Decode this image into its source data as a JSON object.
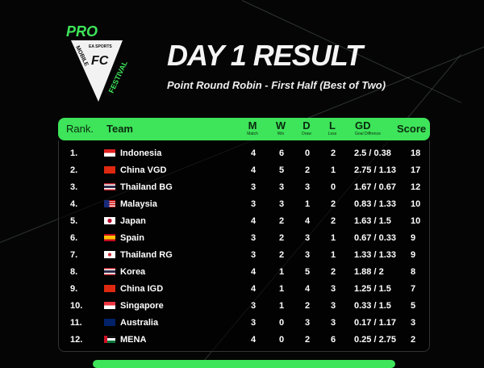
{
  "logo": {
    "top": "PRO",
    "brand": "EA SPORTS",
    "fc": "FC",
    "mobile": "MOBILE",
    "festival": "FESTIVAL"
  },
  "title": "DAY 1 RESULT",
  "subtitle": "Point Round Robin - First Half (Best of Two)",
  "colors": {
    "accent": "#3ee45a",
    "background": "#050505"
  },
  "header": {
    "rank": "Rank.",
    "team": "Team",
    "m": "M",
    "m_sub": "Match",
    "w": "W",
    "w_sub": "Win",
    "d": "D",
    "d_sub": "Draw",
    "l": "L",
    "l_sub": "Loss",
    "gd": "GD",
    "gd_sub": "Goal Diffrence",
    "score": "Score"
  },
  "rows": [
    {
      "rank": "1.",
      "team": "Indonesia",
      "flag": "indonesia",
      "m": "4",
      "w": "6",
      "d": "0",
      "l": "2",
      "gd": "2.5 / 0.38",
      "score": "18"
    },
    {
      "rank": "2.",
      "team": "China VGD",
      "flag": "china",
      "m": "4",
      "w": "5",
      "d": "2",
      "l": "1",
      "gd": "2.75 / 1.13",
      "score": "17"
    },
    {
      "rank": "3.",
      "team": "Thailand BG",
      "flag": "thailand",
      "m": "3",
      "w": "3",
      "d": "3",
      "l": "0",
      "gd": "1.67 / 0.67",
      "score": "12"
    },
    {
      "rank": "4.",
      "team": "Malaysia",
      "flag": "malaysia",
      "m": "3",
      "w": "3",
      "d": "1",
      "l": "2",
      "gd": "0.83 / 1.33",
      "score": "10"
    },
    {
      "rank": "5.",
      "team": "Japan",
      "flag": "japan",
      "m": "4",
      "w": "2",
      "d": "4",
      "l": "2",
      "gd": "1.63 / 1.5",
      "score": "10"
    },
    {
      "rank": "6.",
      "team": "Spain",
      "flag": "spain",
      "m": "3",
      "w": "2",
      "d": "3",
      "l": "1",
      "gd": "0.67 / 0.33",
      "score": "9"
    },
    {
      "rank": "7.",
      "team": "Thailand RG",
      "flag": "korea",
      "m": "3",
      "w": "2",
      "d": "3",
      "l": "1",
      "gd": "1.33 / 1.33",
      "score": "9"
    },
    {
      "rank": "8.",
      "team": "Korea",
      "flag": "thailand",
      "m": "4",
      "w": "1",
      "d": "5",
      "l": "2",
      "gd": "1.88 / 2",
      "score": "8"
    },
    {
      "rank": "9.",
      "team": "China IGD",
      "flag": "china",
      "m": "4",
      "w": "1",
      "d": "4",
      "l": "3",
      "gd": "1.25 / 1.5",
      "score": "7"
    },
    {
      "rank": "10.",
      "team": "Singapore",
      "flag": "singapore",
      "m": "3",
      "w": "1",
      "d": "2",
      "l": "3",
      "gd": "0.33 / 1.5",
      "score": "5"
    },
    {
      "rank": "11.",
      "team": "Australia",
      "flag": "australia",
      "m": "3",
      "w": "0",
      "d": "3",
      "l": "3",
      "gd": "0.17 / 1.17",
      "score": "3"
    },
    {
      "rank": "12.",
      "team": "MENA",
      "flag": "mena",
      "m": "4",
      "w": "0",
      "d": "2",
      "l": "6",
      "gd": "0.25 / 2.75",
      "score": "2"
    }
  ]
}
